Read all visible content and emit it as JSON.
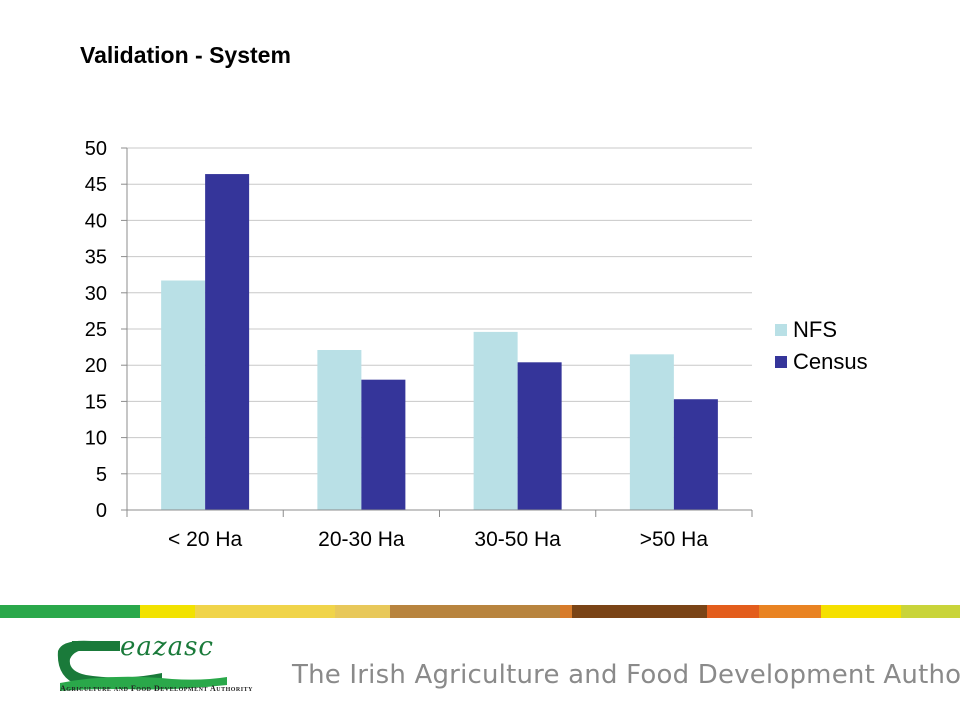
{
  "slide": {
    "title": "Validation - System"
  },
  "chart_data": {
    "type": "bar",
    "categories": [
      "< 20 Ha",
      "20-30 Ha",
      "30-50 Ha",
      ">50 Ha"
    ],
    "series": [
      {
        "name": "NFS",
        "values": [
          31.7,
          22.1,
          24.6,
          21.5
        ],
        "color": "#b9e0e6"
      },
      {
        "name": "Census",
        "values": [
          46.4,
          18.0,
          20.4,
          15.3
        ],
        "color": "#35359a"
      }
    ],
    "ylim": [
      0,
      50
    ],
    "yticks": [
      0,
      5,
      10,
      15,
      20,
      25,
      30,
      35,
      40,
      45,
      50
    ],
    "grid": true,
    "legend_position": "right"
  },
  "footer": {
    "stripe_colors": [
      "#2aa84a",
      "#f2e200",
      "#f0d44a",
      "#e8c85a",
      "#b8843e",
      "#d77b2a",
      "#7a4416",
      "#e35d1c",
      "#e98322",
      "#f5e000",
      "#c9d43a"
    ],
    "logo_text": "eazasc",
    "logo_subtitle": "Agriculture and Food Development Authority",
    "tagline": "The Irish Agriculture and Food Development Authority",
    "brand_green": "#1a7a3a"
  }
}
